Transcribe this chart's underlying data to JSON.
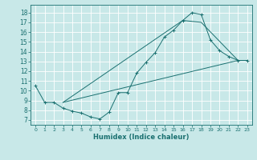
{
  "xlabel": "Humidex (Indice chaleur)",
  "xlim": [
    -0.5,
    23.5
  ],
  "ylim": [
    6.5,
    18.8
  ],
  "yticks": [
    7,
    8,
    9,
    10,
    11,
    12,
    13,
    14,
    15,
    16,
    17,
    18
  ],
  "xticks": [
    0,
    1,
    2,
    3,
    4,
    5,
    6,
    7,
    8,
    9,
    10,
    11,
    12,
    13,
    14,
    15,
    16,
    17,
    18,
    19,
    20,
    21,
    22,
    23
  ],
  "bg_color": "#c8e8e8",
  "grid_color": "#ffffff",
  "line_color": "#1a7070",
  "line1_x": [
    0,
    1,
    2,
    3,
    4,
    5,
    6,
    7,
    8,
    9,
    10,
    11,
    12,
    13,
    14,
    15,
    16,
    17,
    18,
    19,
    20,
    21,
    22,
    23
  ],
  "line1_y": [
    10.5,
    8.8,
    8.8,
    8.2,
    7.9,
    7.7,
    7.3,
    7.1,
    7.8,
    9.8,
    9.8,
    11.8,
    12.9,
    13.9,
    15.5,
    16.2,
    17.2,
    18.0,
    17.8,
    15.2,
    14.1,
    13.5,
    13.1,
    13.1
  ],
  "line2_x": [
    3,
    16,
    18,
    22
  ],
  "line2_y": [
    8.8,
    17.2,
    17.0,
    13.1
  ],
  "line3_x": [
    3,
    22
  ],
  "line3_y": [
    8.8,
    13.1
  ]
}
